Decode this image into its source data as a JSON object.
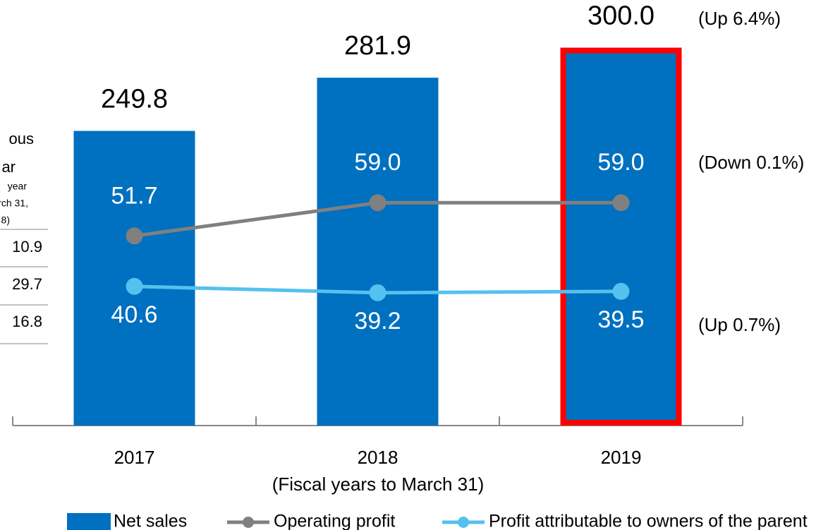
{
  "chart_data": {
    "type": "bar",
    "categories": [
      "2017",
      "2018",
      "2019"
    ],
    "series": [
      {
        "name": "Net sales",
        "type": "bar",
        "color": "#0070c0",
        "values": [
          249.8,
          281.9,
          300.0
        ],
        "value_labels": [
          "249.8",
          "281.9",
          "300.0"
        ]
      },
      {
        "name": "Operating profit",
        "type": "line",
        "axis": "y2",
        "color": "#808080",
        "values": [
          51.7,
          59.0,
          59.0
        ],
        "value_labels": [
          "51.7",
          "59.0",
          "59.0"
        ]
      },
      {
        "name": "Profit attributable to owners of the parent",
        "type": "line",
        "axis": "y2",
        "color": "#55c1ee",
        "values": [
          40.6,
          39.2,
          39.5
        ],
        "value_labels": [
          "40.6",
          "39.2",
          "39.5"
        ]
      }
    ],
    "ylim": [
      72,
      319
    ],
    "y2lim": [
      10,
      100
    ],
    "xlabel": "(Fiscal years to March 31)",
    "annotations": [
      "(Up 6.4%)",
      "(Down 0.1%)",
      "(Up 0.7%)"
    ],
    "highlight_category": "2019",
    "highlight_color": "#ff0000",
    "legend": "bottom",
    "side_table": {
      "header": [
        "ous",
        "ar",
        "year",
        "rch 31,",
        "8)"
      ],
      "values": [
        10.9,
        29.7,
        16.8
      ]
    }
  }
}
